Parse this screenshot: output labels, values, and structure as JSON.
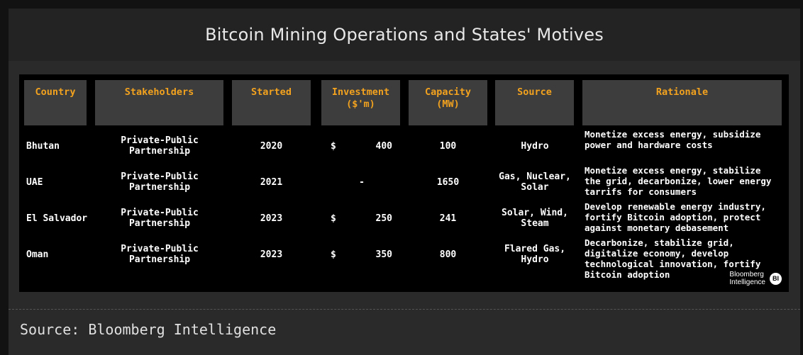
{
  "title": "Bitcoin Mining Operations and States' Motives",
  "table": {
    "headers": [
      "Country",
      "Stakeholders",
      "Started",
      "Investment\n($'m)",
      "Capacity\n(MW)",
      "Source",
      "Rationale"
    ],
    "rows": [
      {
        "country": "Bhutan",
        "stakeholders": "Private-Public Partnership",
        "started": "2020",
        "investment_symbol": "$",
        "investment_value": "400",
        "capacity": "100",
        "source": "Hydro",
        "rationale": "Monetize excess energy, subsidize power and hardware costs"
      },
      {
        "country": "UAE",
        "stakeholders": "Private-Public Partnership",
        "started": "2021",
        "investment_symbol": "",
        "investment_value": "-",
        "capacity": "1650",
        "source": "Gas, Nuclear, Solar",
        "rationale": "Monetize excess energy, stabilize the grid, decarbonize, lower energy tarrifs for consumers"
      },
      {
        "country": "El Salvador",
        "stakeholders": "Private-Public Partnership",
        "started": "2023",
        "investment_symbol": "$",
        "investment_value": "250",
        "capacity": "241",
        "source": "Solar, Wind, Steam",
        "rationale": "Develop renewable energy industry, fortify Bitcoin adoption, protect against monetary debasement"
      },
      {
        "country": "Oman",
        "stakeholders": "Private-Public Partnership",
        "started": "2023",
        "investment_symbol": "$",
        "investment_value": "350",
        "capacity": "800",
        "source": "Flared Gas, Hydro",
        "rationale": "Decarbonize, stabilize grid, digitalize economy, develop technological innovation, fortify Bitcoin adoption"
      }
    ]
  },
  "logo": {
    "line1": "Bloomberg",
    "line2": "Intelligence",
    "mark": "BI"
  },
  "source": "Source: Bloomberg Intelligence",
  "colors": {
    "header_text": "#f2a21e",
    "header_bg": "#3d3d3d",
    "table_bg": "#000000",
    "frame_bg": "#2a2a2a"
  }
}
